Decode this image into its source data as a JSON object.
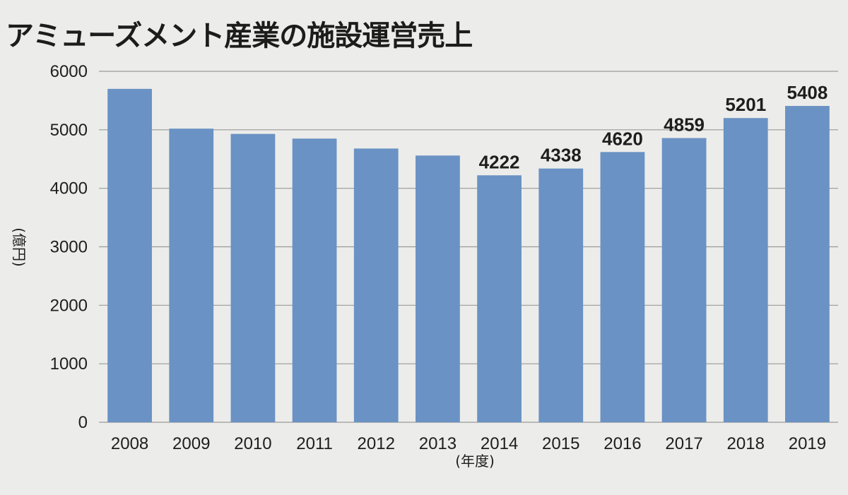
{
  "chart_data": {
    "type": "bar",
    "title": "アミューズメント産業の施設運営売上",
    "xlabel": "(年度)",
    "ylabel": "(億円)",
    "ylim": [
      0,
      6000
    ],
    "yticks": [
      0,
      1000,
      2000,
      3000,
      4000,
      5000,
      6000
    ],
    "grid": true,
    "categories": [
      "2008",
      "2009",
      "2010",
      "2011",
      "2012",
      "2013",
      "2014",
      "2015",
      "2016",
      "2017",
      "2018",
      "2019"
    ],
    "values": [
      5700,
      5020,
      4930,
      4850,
      4680,
      4560,
      4222,
      4338,
      4620,
      4859,
      5201,
      5408
    ],
    "data_labels": [
      "",
      "",
      "",
      "",
      "",
      "",
      "4222",
      "4338",
      "4620",
      "4859",
      "5201",
      "5408"
    ],
    "bar_color": "#6a92c4"
  }
}
